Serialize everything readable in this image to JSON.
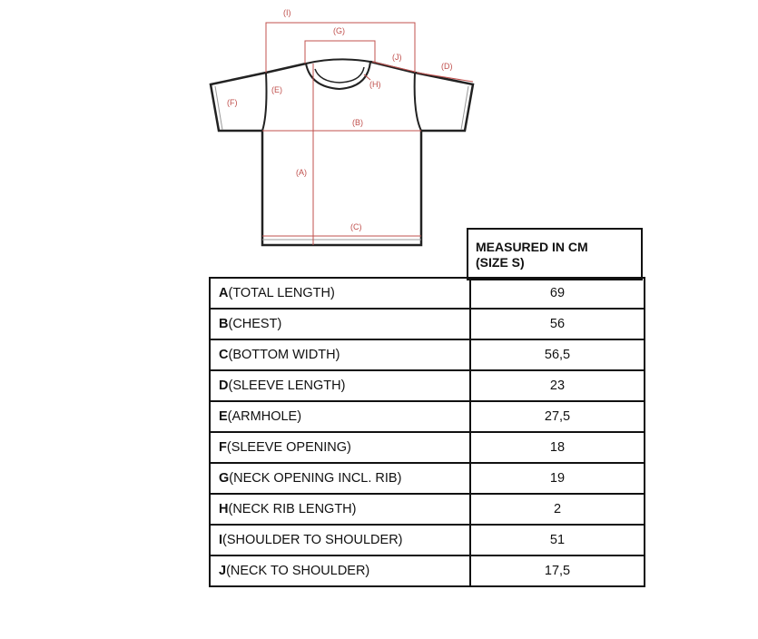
{
  "diagram": {
    "labels": {
      "A": "(A)",
      "B": "(B)",
      "C": "(C)",
      "D": "(D)",
      "E": "(E)",
      "F": "(F)",
      "G": "(G)",
      "H": "(H)",
      "I": "(I)",
      "J": "(J)"
    },
    "line_color": "#c0504d"
  },
  "table": {
    "header_line1": "MEASURED IN CM",
    "header_line2": "(SIZE S)",
    "rows": [
      {
        "letter": "A",
        "name": "(TOTAL LENGTH)",
        "value": "69"
      },
      {
        "letter": "B",
        "name": "(CHEST)",
        "value": "56"
      },
      {
        "letter": "C",
        "name": "(BOTTOM WIDTH)",
        "value": "56,5"
      },
      {
        "letter": "D",
        "name": "(SLEEVE LENGTH)",
        "value": "23"
      },
      {
        "letter": "E",
        "name": "(ARMHOLE)",
        "value": "27,5"
      },
      {
        "letter": "F",
        "name": "(SLEEVE OPENING)",
        "value": "18"
      },
      {
        "letter": "G",
        "name": "(NECK OPENING INCL. RIB)",
        "value": "19"
      },
      {
        "letter": "H",
        "name": "(NECK RIB LENGTH)",
        "value": "2"
      },
      {
        "letter": "I",
        "name": "(SHOULDER TO SHOULDER)",
        "value": "51"
      },
      {
        "letter": "J",
        "name": "(NECK TO SHOULDER)",
        "value": "17,5"
      }
    ]
  }
}
